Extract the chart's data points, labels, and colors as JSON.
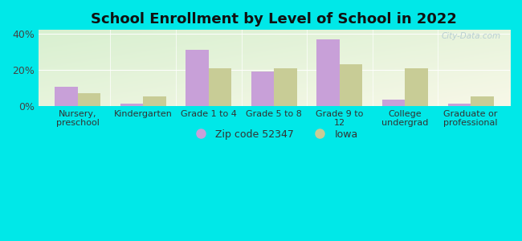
{
  "title": "School Enrollment by Level of School in 2022",
  "categories": [
    "Nursery,\npreschool",
    "Kindergarten",
    "Grade 1 to 4",
    "Grade 5 to 8",
    "Grade 9 to\n12",
    "College\nundergrad",
    "Graduate or\nprofessional"
  ],
  "zip_values": [
    10.5,
    1.5,
    31.0,
    19.0,
    37.0,
    3.5,
    1.5
  ],
  "iowa_values": [
    7.0,
    5.5,
    21.0,
    21.0,
    23.0,
    21.0,
    5.5
  ],
  "zip_color": "#c8a0d8",
  "iowa_color": "#c8cc96",
  "ylim": [
    0,
    42
  ],
  "yticks": [
    0,
    20,
    40
  ],
  "ytick_labels": [
    "0%",
    "20%",
    "40%"
  ],
  "background_color": "#00e8e8",
  "legend_zip_label": "Zip code 52347",
  "legend_iowa_label": "Iowa",
  "watermark": "City-Data.com",
  "bar_width": 0.35,
  "title_fontsize": 13,
  "axis_fontsize": 8.0,
  "tick_fontsize": 9,
  "legend_fontsize": 9
}
